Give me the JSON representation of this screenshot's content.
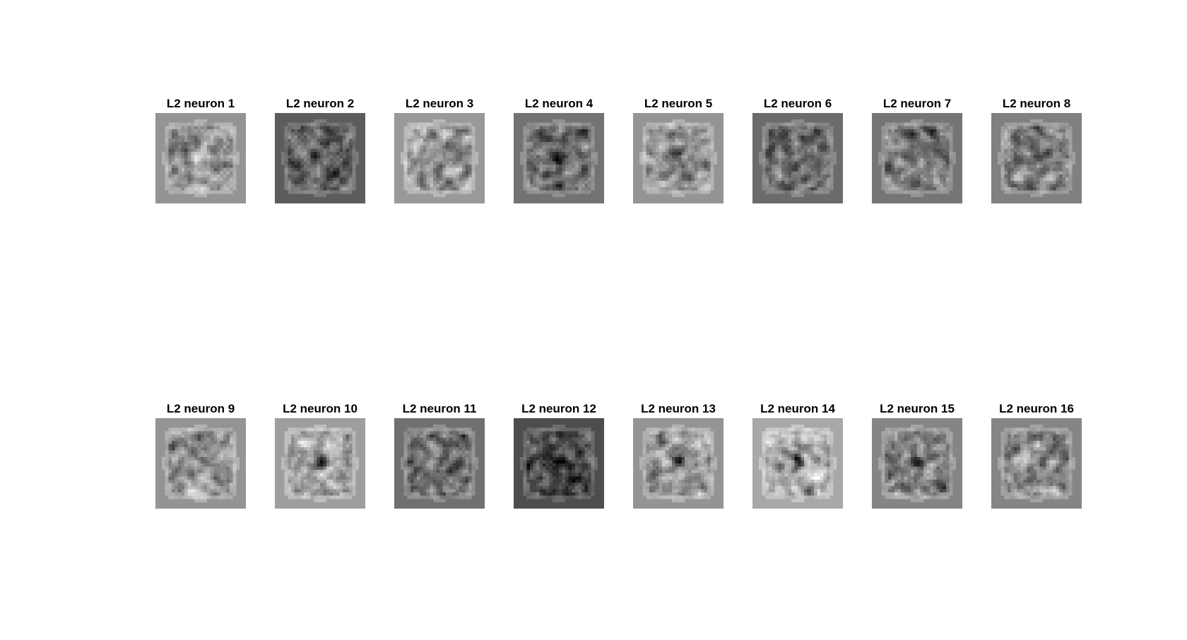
{
  "figure": {
    "background": "#ffffff",
    "colormap": "gray",
    "panels": [
      {
        "title": "L2 neuron 1",
        "background_gray": 0.58,
        "center_dark": false
      },
      {
        "title": "L2 neuron 2",
        "background_gray": 0.36,
        "center_dark": false
      },
      {
        "title": "L2 neuron 3",
        "background_gray": 0.6,
        "center_dark": true
      },
      {
        "title": "L2 neuron 4",
        "background_gray": 0.45,
        "center_dark": true
      },
      {
        "title": "L2 neuron 5",
        "background_gray": 0.58,
        "center_dark": true
      },
      {
        "title": "L2 neuron 6",
        "background_gray": 0.42,
        "center_dark": false
      },
      {
        "title": "L2 neuron 7",
        "background_gray": 0.46,
        "center_dark": false
      },
      {
        "title": "L2 neuron 8",
        "background_gray": 0.5,
        "center_dark": true
      },
      {
        "title": "L2 neuron 9",
        "background_gray": 0.58,
        "center_dark": false
      },
      {
        "title": "L2 neuron 10",
        "background_gray": 0.62,
        "center_dark": true
      },
      {
        "title": "L2 neuron 11",
        "background_gray": 0.44,
        "center_dark": false
      },
      {
        "title": "L2 neuron 12",
        "background_gray": 0.3,
        "center_dark": false
      },
      {
        "title": "L2 neuron 13",
        "background_gray": 0.58,
        "center_dark": true
      },
      {
        "title": "L2 neuron 14",
        "background_gray": 0.66,
        "center_dark": true
      },
      {
        "title": "L2 neuron 15",
        "background_gray": 0.52,
        "center_dark": true
      },
      {
        "title": "L2 neuron 16",
        "background_gray": 0.52,
        "center_dark": false
      }
    ]
  }
}
